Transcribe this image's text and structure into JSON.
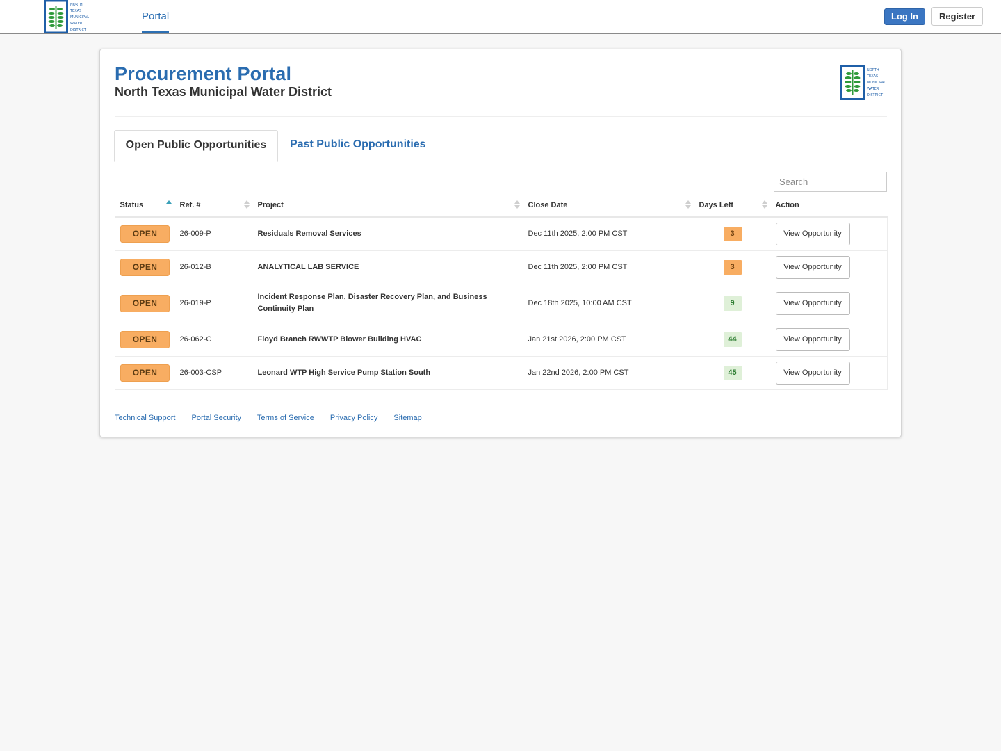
{
  "nav": {
    "logo_icon": "ntmwd-logo-icon",
    "logo_text": [
      "NORTH",
      "TEXAS",
      "MUNICIPAL",
      "WATER",
      "DISTRICT"
    ],
    "portal_link": "Portal",
    "login_label": "Log In",
    "register_label": "Register"
  },
  "header": {
    "title": "Procurement Portal",
    "subtitle": "North Texas Municipal Water District"
  },
  "tabs": {
    "open_label": "Open Public Opportunities",
    "past_label": "Past Public Opportunities"
  },
  "search": {
    "placeholder": "Search"
  },
  "table": {
    "columns": {
      "status": "Status",
      "ref": "Ref. #",
      "project": "Project",
      "close_date": "Close Date",
      "days_left": "Days Left",
      "action": "Action"
    },
    "rows": [
      {
        "status": "OPEN",
        "ref": "26-009-P",
        "project": "Residuals Removal Services",
        "close_date": "Dec 11th 2025, 2:00 PM CST",
        "days_left": "3",
        "action": "View Opportunity"
      },
      {
        "status": "OPEN",
        "ref": "26-012-B",
        "project": "ANALYTICAL LAB SERVICE",
        "close_date": "Dec 11th 2025, 2:00 PM CST",
        "days_left": "3",
        "action": "View Opportunity"
      },
      {
        "status": "OPEN",
        "ref": "26-019-P",
        "project": "Incident Response Plan, Disaster Recovery Plan, and Business Continuity Plan",
        "close_date": "Dec 18th 2025, 10:00 AM CST",
        "days_left": "9",
        "action": "View Opportunity"
      },
      {
        "status": "OPEN",
        "ref": "26-062-C",
        "project": "Floyd Branch RWWTP Blower Building HVAC",
        "close_date": "Jan 21st 2026, 2:00 PM CST",
        "days_left": "44",
        "action": "View Opportunity"
      },
      {
        "status": "OPEN",
        "ref": "26-003-CSP",
        "project": "Leonard WTP High Service Pump Station South",
        "close_date": "Jan 22nd 2026, 2:00 PM CST",
        "days_left": "45",
        "action": "View Opportunity"
      }
    ]
  },
  "footer": {
    "links": [
      "Technical Support",
      "Portal Security",
      "Terms of Service",
      "Privacy Policy",
      "Sitemap"
    ]
  },
  "colors": {
    "brand_blue": "#2a6cb0",
    "open_orange": "#f8ad62",
    "days_green_bg": "#dff0d8",
    "logo_green": "#2e9a3a"
  }
}
